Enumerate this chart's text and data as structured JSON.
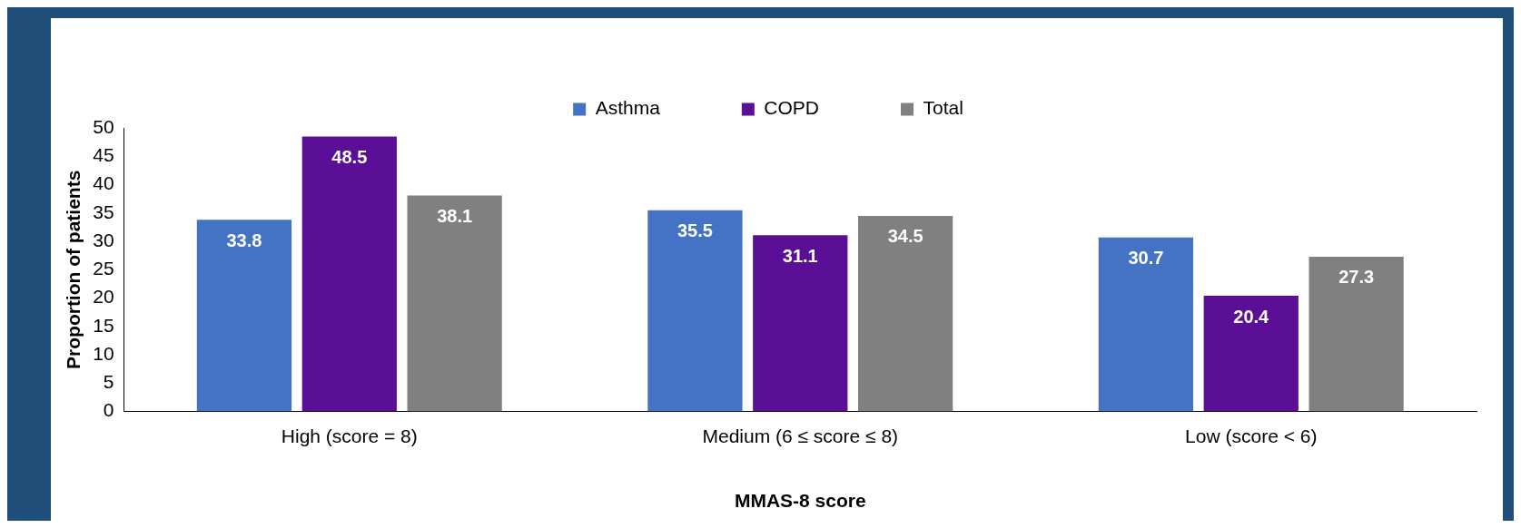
{
  "chart_data": {
    "type": "bar",
    "xlabel": "MMAS-8 score",
    "ylabel": "Proportion of patients",
    "categories": [
      "High (score = 8)",
      "Medium (6 ≤ score ≤ 8)",
      "Low (score < 6)"
    ],
    "series": [
      {
        "name": "Asthma",
        "color": "#4472c4",
        "values": [
          33.8,
          35.5,
          30.7
        ]
      },
      {
        "name": "COPD",
        "color": "#5a0f96",
        "values": [
          48.5,
          31.1,
          20.4
        ]
      },
      {
        "name": "Total",
        "color": "#808080",
        "values": [
          38.1,
          34.5,
          27.3
        ]
      }
    ],
    "ylim": [
      0,
      50
    ],
    "yticks": [
      0,
      5,
      10,
      15,
      20,
      25,
      30,
      35,
      40,
      45,
      50
    ],
    "grid": false,
    "legend": "top",
    "data_labels": true
  }
}
